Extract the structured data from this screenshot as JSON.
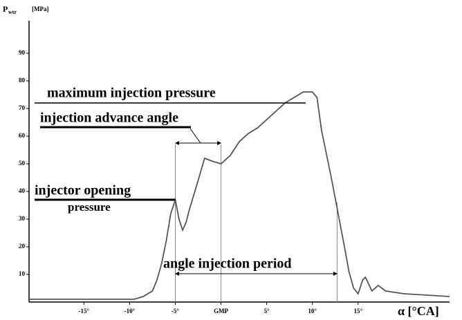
{
  "chart_data": {
    "type": "line",
    "y_label": "P",
    "y_label_sub": "wtr",
    "y_unit": "[MPa]",
    "x_label": "α [°CA]",
    "annotations": [
      "maximum injection pressure",
      "injection advance angle",
      "injector opening",
      "pressure",
      "angle injection period"
    ],
    "x": [
      -21,
      -9.5,
      -8.5,
      -7.5,
      -7,
      -6.5,
      -6,
      -5.5,
      -5,
      -4.6,
      -4.2,
      -3.8,
      -3.5,
      -2.5,
      -1.8,
      -1,
      0,
      1,
      2,
      3,
      4,
      5,
      6,
      7,
      8,
      9,
      10,
      10.5,
      11,
      12,
      12.7,
      13.5,
      14,
      14.5,
      15,
      15.5,
      15.8,
      16.5,
      17.2,
      18,
      20,
      25
    ],
    "values": [
      1,
      1,
      2,
      4,
      8,
      14,
      22,
      32,
      37,
      30,
      26,
      29,
      33,
      44,
      52,
      51,
      50,
      53,
      58,
      61,
      63,
      66,
      69,
      72,
      74,
      76,
      76,
      74,
      62,
      46,
      34,
      20,
      11,
      5,
      3,
      8,
      9,
      4,
      6,
      4,
      3,
      2
    ],
    "color": "#555555",
    "vlines": [
      -5,
      0,
      12.7
    ],
    "xlim": [
      -21,
      25
    ],
    "ylim": [
      0,
      100
    ],
    "xticks": [
      {
        "value": -15,
        "label": "-15°"
      },
      {
        "value": -10,
        "label": "-10°"
      },
      {
        "value": -5,
        "label": "-5°"
      },
      {
        "value": 0,
        "label": "GMP"
      },
      {
        "value": 5,
        "label": "5°"
      },
      {
        "value": 10,
        "label": "10°"
      },
      {
        "value": 15,
        "label": "15°"
      }
    ],
    "yticks": [
      10,
      20,
      30,
      40,
      50,
      60,
      70,
      80,
      90
    ]
  }
}
